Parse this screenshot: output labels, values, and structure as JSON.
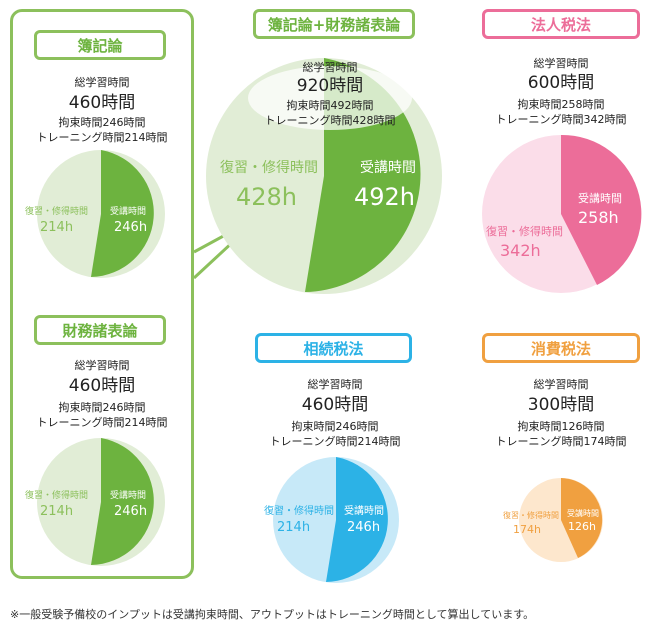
{
  "colors": {
    "green": "#6db33f",
    "green_light": "#e1edd6",
    "pink": "#ec6d99",
    "pink_light": "#fbdde9",
    "blue": "#2cb2e6",
    "blue_light": "#c7e9f8",
    "orange": "#f0a040",
    "orange_light": "#fde7cd"
  },
  "boki": {
    "title": "簿記論",
    "total_label": "総学習時間",
    "total": "460時間",
    "restraint": "拘束時間246時間",
    "training": "トレーニング時間214時間",
    "review_label": "復習・修得時間",
    "review": "214h",
    "lecture_label": "受講時間",
    "lecture": "246h"
  },
  "zaimu": {
    "title": "財務諸表論",
    "total_label": "総学習時間",
    "total": "460時間",
    "restraint": "拘束時間246時間",
    "training": "トレーニング時間214時間",
    "review_label": "復習・修得時間",
    "review": "214h",
    "lecture_label": "受講時間",
    "lecture": "246h"
  },
  "combo": {
    "title": "簿記論+財務諸表論",
    "total_label": "総学習時間",
    "total": "920時間",
    "restraint": "拘束時間492時間",
    "training": "トレーニング時間428時間",
    "review_label": "復習・修得時間",
    "review": "428h",
    "lecture_label": "受講時間",
    "lecture": "492h"
  },
  "hojin": {
    "title": "法人税法",
    "total_label": "総学習時間",
    "total": "600時間",
    "restraint": "拘束時間258時間",
    "training": "トレーニング時間342時間",
    "review_label": "復習・修得時間",
    "review": "342h",
    "lecture_label": "受講時間",
    "lecture": "258h"
  },
  "sozoku": {
    "title": "相続税法",
    "total_label": "総学習時間",
    "total": "460時間",
    "restraint": "拘束時間246時間",
    "training": "トレーニング時間214時間",
    "review_label": "復習・修得時間",
    "review": "214h",
    "lecture_label": "受講時間",
    "lecture": "246h"
  },
  "shohi": {
    "title": "消費税法",
    "total_label": "総学習時間",
    "total": "300時間",
    "restraint": "拘束時間126時間",
    "training": "トレーニング時間174時間",
    "review_label": "復習・修得時間",
    "review": "174h",
    "lecture_label": "受講時間",
    "lecture": "126h"
  },
  "footnote": "※一般受験予備校のインプットは受講拘束時間、アウトプットはトレーニング時間として算出しています。"
}
